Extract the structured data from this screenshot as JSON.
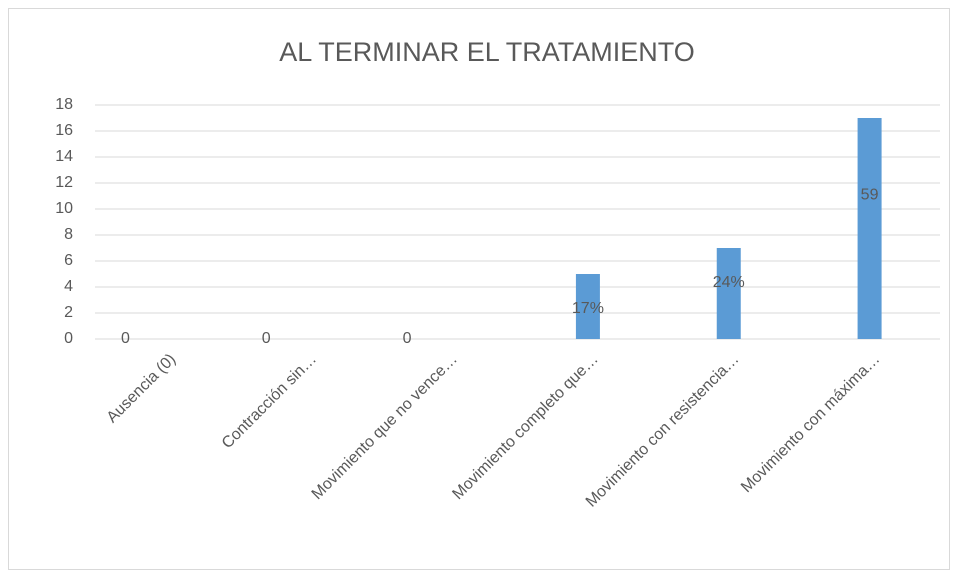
{
  "chart_data": {
    "type": "bar",
    "title": "AL TERMINAR EL TRATAMIENTO",
    "categories": [
      "Ausencia  (0)",
      "Contracción sin…",
      "Movimiento que no vence…",
      "Movimiento completo que…",
      "Movimiento con resistencia…",
      "Movimiento con máxima…"
    ],
    "values": [
      0,
      0,
      0,
      5,
      7,
      17
    ],
    "annotations": [
      "0",
      "0",
      "0",
      "17%",
      "24%",
      "59"
    ],
    "color": "#5b9bd5",
    "ylim": [
      0,
      18
    ],
    "yticks": [
      0,
      2,
      4,
      6,
      8,
      10,
      12,
      14,
      16,
      18
    ],
    "grid": true
  }
}
